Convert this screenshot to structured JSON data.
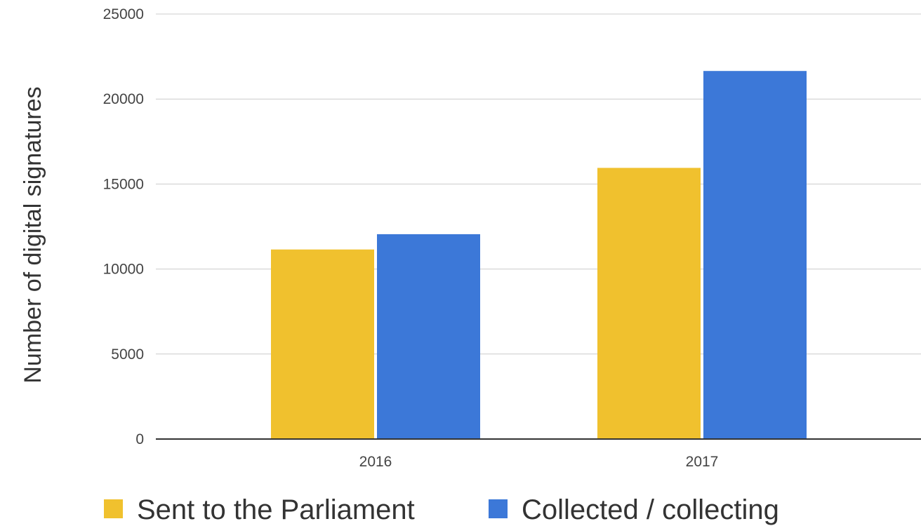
{
  "chart_data": {
    "type": "bar",
    "title": "",
    "xlabel": "",
    "ylabel": "Number of digital signatures",
    "categories": [
      "2016",
      "2017"
    ],
    "series": [
      {
        "name": "Sent to the Parliament",
        "color": "#F0C12E",
        "values": [
          11150,
          15950
        ]
      },
      {
        "name": "Collected / collecting",
        "color": "#3C78D8",
        "values": [
          12050,
          21650
        ]
      }
    ],
    "ylim": [
      0,
      25000
    ],
    "yticks": [
      0,
      5000,
      10000,
      15000,
      20000,
      25000
    ],
    "grid": true,
    "legend_position": "bottom"
  }
}
